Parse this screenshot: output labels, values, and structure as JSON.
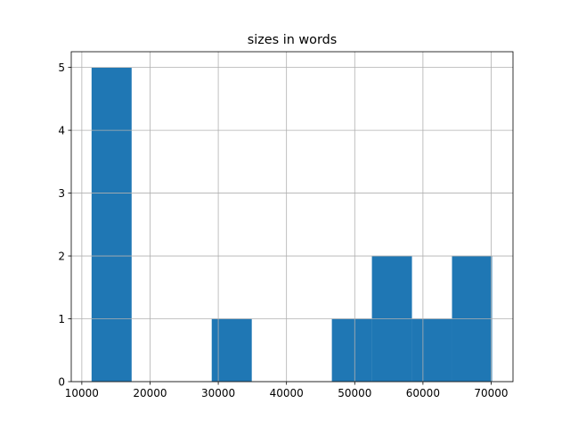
{
  "chart_data": {
    "type": "histogram",
    "title": "sizes in words",
    "bins": [
      11430,
      17300,
      23170,
      29040,
      34910,
      40780,
      46650,
      52520,
      58390,
      64260,
      70130
    ],
    "values": [
      5,
      0,
      0,
      1,
      0,
      0,
      1,
      2,
      1,
      2
    ],
    "color": "#1f77b4",
    "xlim": [
      8450,
      73200
    ],
    "xticks": [
      10000,
      20000,
      30000,
      40000,
      50000,
      60000,
      70000
    ],
    "ylim": [
      0,
      5.25
    ],
    "yticks": [
      0,
      1,
      2,
      3,
      4,
      5
    ],
    "grid": true
  }
}
